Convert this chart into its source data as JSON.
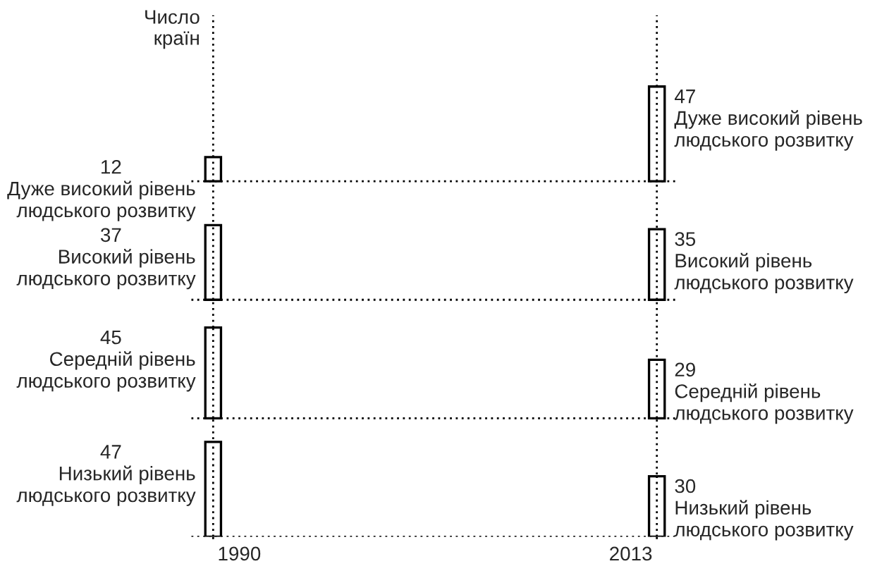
{
  "chart_data": {
    "type": "other",
    "ylabel": "Число\nкраїн",
    "categories": [
      "1990",
      "2013"
    ],
    "data_labels": true,
    "series": [
      {
        "name": "Дуже високий рівень\nлюдського розвитку",
        "values": [
          12,
          47
        ]
      },
      {
        "name": "Високий рівень\nлюдського розвитку",
        "values": [
          37,
          35
        ]
      },
      {
        "name": "Середній рівень\nлюдського розвитку",
        "values": [
          45,
          29
        ]
      },
      {
        "name": "Низький рівень\nлюдського розвитку",
        "values": [
          47,
          30
        ]
      }
    ]
  }
}
